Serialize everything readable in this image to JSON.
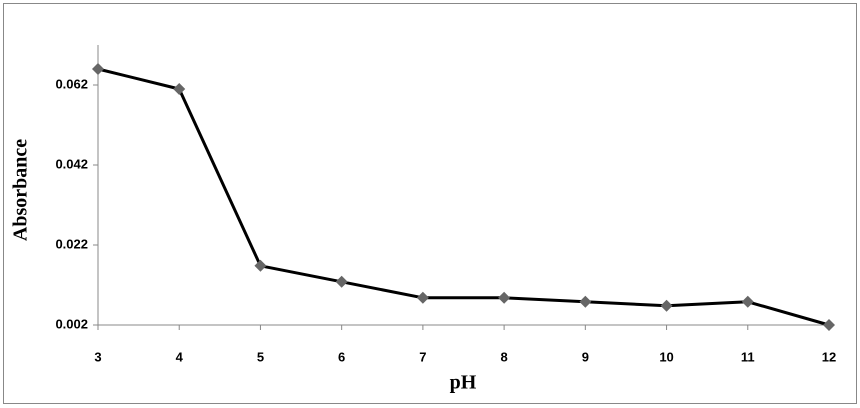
{
  "chart_data": {
    "type": "line",
    "x_label": "pH",
    "y_label": "Absorbance",
    "x": [
      3,
      4,
      5,
      6,
      7,
      8,
      9,
      10,
      11,
      12
    ],
    "series": [
      {
        "color": "#000000",
        "marker_color": "#666666",
        "values": [
          0.066,
          0.061,
          0.0168,
          0.0128,
          0.0088,
          0.0088,
          0.0078,
          0.0068,
          0.0078,
          0.002
        ]
      }
    ],
    "xlim": [
      3,
      12
    ],
    "xticks": [
      3,
      4,
      5,
      6,
      7,
      8,
      9,
      10,
      11,
      12
    ],
    "ylim": [
      0.002,
      0.072
    ],
    "yticks": [
      0.002,
      0.022,
      0.042,
      0.062
    ],
    "grid": false
  }
}
